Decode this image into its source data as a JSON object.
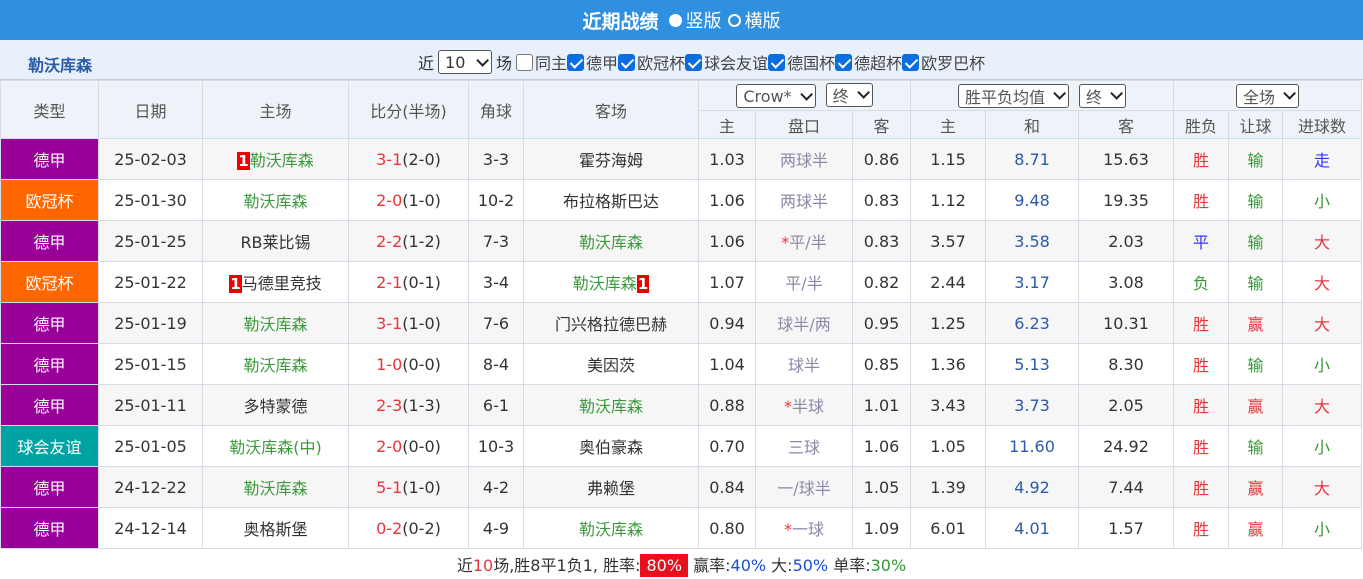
{
  "title": "近期战绩",
  "view_options": [
    {
      "label": "竖版",
      "checked": true
    },
    {
      "label": "横版",
      "checked": false
    }
  ],
  "team": "勒沃库森",
  "filter": {
    "prefix": "近",
    "count": "10",
    "suffix": "场",
    "same_home": {
      "label": "同主",
      "checked": false
    },
    "leagues": [
      {
        "label": "德甲",
        "checked": true
      },
      {
        "label": "欧冠杯",
        "checked": true
      },
      {
        "label": "球会友谊",
        "checked": true
      },
      {
        "label": "德国杯",
        "checked": true
      },
      {
        "label": "德超杯",
        "checked": true
      },
      {
        "label": "欧罗巴杯",
        "checked": true
      }
    ]
  },
  "columns": [
    "类型",
    "日期",
    "主场",
    "比分(半场)",
    "角球",
    "客场"
  ],
  "selects": [
    "Crow*",
    "终",
    "胜平负均值",
    "终",
    "全场"
  ],
  "sub_columns": [
    "主",
    "盘口",
    "客",
    "主",
    "和",
    "客",
    "胜负",
    "让球",
    "进球数"
  ],
  "rows": [
    {
      "type": "德甲",
      "type_color": "#990099",
      "date": "25-02-03",
      "home": "勒沃库森",
      "home_red": "1",
      "score": "3-1",
      "half": "(2-0)",
      "corners": "3-3",
      "away": "霍芬海姆",
      "o1": "1.03",
      "handicap": "两球半",
      "o2": "0.86",
      "w": "1.15",
      "d": "8.71",
      "l": "15.63",
      "result": "胜",
      "cover": "输",
      "goals": "走",
      "colors": [
        "#e8353b",
        "#339933",
        "#3333ff"
      ]
    },
    {
      "type": "欧冠杯",
      "type_color": "#ff6600",
      "date": "25-01-30",
      "home": "勒沃库森",
      "score": "2-0",
      "half": "(1-0)",
      "corners": "10-2",
      "away": "布拉格斯巴达",
      "o1": "1.06",
      "handicap": "两球半",
      "o2": "0.83",
      "w": "1.12",
      "d": "9.48",
      "l": "19.35",
      "result": "胜",
      "cover": "输",
      "goals": "小",
      "colors": [
        "#e8353b",
        "#339933",
        "#339933"
      ]
    },
    {
      "type": "德甲",
      "type_color": "#990099",
      "date": "25-01-25",
      "home": "RB莱比锡",
      "score": "2-2",
      "half": "(1-2)",
      "corners": "7-3",
      "away": "勒沃库森",
      "o1": "1.06",
      "star": "*",
      "handicap": "平/半",
      "o2": "0.83",
      "w": "3.57",
      "d": "3.58",
      "l": "2.03",
      "result": "平",
      "cover": "输",
      "goals": "大",
      "colors": [
        "#3333ff",
        "#339933",
        "#e8353b"
      ]
    },
    {
      "type": "欧冠杯",
      "type_color": "#ff6600",
      "date": "25-01-22",
      "home": "马德里竞技",
      "home_red": "1",
      "score": "2-1",
      "half": "(0-1)",
      "corners": "3-4",
      "away": "勒沃库森",
      "away_red": "1",
      "o1": "1.07",
      "handicap": "平/半",
      "o2": "0.82",
      "w": "2.44",
      "d": "3.17",
      "l": "3.08",
      "result": "负",
      "cover": "输",
      "goals": "大",
      "colors": [
        "#339933",
        "#339933",
        "#e8353b"
      ]
    },
    {
      "type": "德甲",
      "type_color": "#990099",
      "date": "25-01-19",
      "home": "勒沃库森",
      "score": "3-1",
      "half": "(1-0)",
      "corners": "7-6",
      "away": "门兴格拉德巴赫",
      "o1": "0.94",
      "handicap": "球半/两",
      "o2": "0.95",
      "w": "1.25",
      "d": "6.23",
      "l": "10.31",
      "result": "胜",
      "cover": "赢",
      "goals": "大",
      "colors": [
        "#e8353b",
        "#e8353b",
        "#e8353b"
      ]
    },
    {
      "type": "德甲",
      "type_color": "#990099",
      "date": "25-01-15",
      "home": "勒沃库森",
      "score": "1-0",
      "half": "(0-0)",
      "corners": "8-4",
      "away": "美因茨",
      "o1": "1.04",
      "handicap": "球半",
      "o2": "0.85",
      "w": "1.36",
      "d": "5.13",
      "l": "8.30",
      "result": "胜",
      "cover": "输",
      "goals": "小",
      "colors": [
        "#e8353b",
        "#339933",
        "#339933"
      ]
    },
    {
      "type": "德甲",
      "type_color": "#990099",
      "date": "25-01-11",
      "home": "多特蒙德",
      "score": "2-3",
      "half": "(1-3)",
      "corners": "6-1",
      "away": "勒沃库森",
      "o1": "0.88",
      "star": "*",
      "handicap": "半球",
      "o2": "1.01",
      "w": "3.43",
      "d": "3.73",
      "l": "2.05",
      "result": "胜",
      "cover": "赢",
      "goals": "大",
      "colors": [
        "#e8353b",
        "#e8353b",
        "#e8353b"
      ]
    },
    {
      "type": "球会友谊",
      "type_color": "#00a3a3",
      "date": "25-01-05",
      "home": "勒沃库森(中)",
      "score": "2-0",
      "half": "(0-0)",
      "corners": "10-3",
      "away": "奥伯豪森",
      "o1": "0.70",
      "handicap": "三球",
      "o2": "1.06",
      "w": "1.05",
      "d": "11.60",
      "l": "24.92",
      "result": "胜",
      "cover": "输",
      "goals": "小",
      "colors": [
        "#e8353b",
        "#339933",
        "#339933"
      ]
    },
    {
      "type": "德甲",
      "type_color": "#990099",
      "date": "24-12-22",
      "home": "勒沃库森",
      "score": "5-1",
      "half": "(1-0)",
      "corners": "4-2",
      "away": "弗赖堡",
      "o1": "0.84",
      "handicap": "一/球半",
      "o2": "1.05",
      "w": "1.39",
      "d": "4.92",
      "l": "7.44",
      "result": "胜",
      "cover": "赢",
      "goals": "大",
      "colors": [
        "#e8353b",
        "#e8353b",
        "#e8353b"
      ]
    },
    {
      "type": "德甲",
      "type_color": "#990099",
      "date": "24-12-14",
      "home": "奥格斯堡",
      "score": "0-2",
      "half": "(0-2)",
      "corners": "4-9",
      "away": "勒沃库森",
      "o1": "0.80",
      "star": "*",
      "handicap": "一球",
      "o2": "1.09",
      "w": "6.01",
      "d": "4.01",
      "l": "1.57",
      "result": "胜",
      "cover": "赢",
      "goals": "小",
      "colors": [
        "#e8353b",
        "#e8353b",
        "#339933"
      ]
    }
  ],
  "summary": [
    {
      "text": "近",
      "color": "#333"
    },
    {
      "text": "10",
      "color": "#e8353b"
    },
    {
      "text": "场,胜",
      "color": "#333"
    },
    {
      "text": "8",
      "color": "#333"
    },
    {
      "text": "平",
      "color": "#333"
    },
    {
      "text": "1",
      "color": "#333"
    },
    {
      "text": "负",
      "color": "#333"
    },
    {
      "text": "1",
      "color": "#333"
    },
    {
      "text": ", 胜率:",
      "color": "#333"
    },
    {
      "text": "80%",
      "color": "#ffffff",
      "highlight": true
    },
    {
      "text": " 赢率:",
      "color": "#333"
    },
    {
      "text": "40%",
      "color": "#1a4fd6"
    },
    {
      "text": " 大:",
      "color": "#333"
    },
    {
      "text": "50%",
      "color": "#1a4fd6"
    },
    {
      "text": " 单率:",
      "color": "#333"
    },
    {
      "text": "30%",
      "color": "#339933"
    }
  ]
}
